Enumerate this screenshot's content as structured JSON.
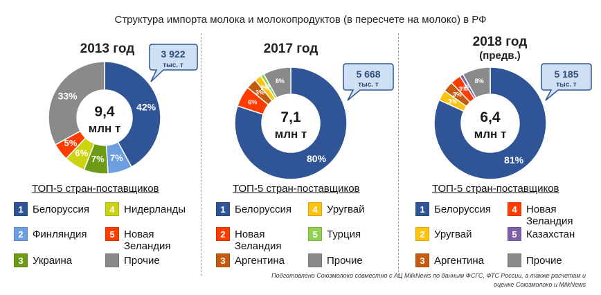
{
  "title": "Структура импорта молока и молокопродуктов (в пересчете на молоко) в РФ",
  "colors": {
    "belarus": "#2f5597",
    "finland": "#6d9ee0",
    "ukraine": "#6e9b16",
    "netherlands": "#ccd411",
    "new_zealand": "#ff3c00",
    "others": "#8a8a8a",
    "uruguay": "#ffc20e",
    "turkey": "#92d050",
    "argentina": "#c55a11",
    "kazakhstan": "#7d5fa6"
  },
  "chart_data": [
    {
      "type": "donut",
      "year": "2013 год",
      "year_sub": "",
      "center_value": "9,4",
      "center_unit": "млн т",
      "callout_value": "3 922",
      "callout_unit": "тыс. т",
      "slices": [
        {
          "name": "Белоруссия",
          "value": 42,
          "label": "42%",
          "color": "#2f5597"
        },
        {
          "name": "Финляндия",
          "value": 7,
          "label": "7%",
          "color": "#6d9ee0"
        },
        {
          "name": "Украина",
          "value": 7,
          "label": "7%",
          "color": "#6e9b16"
        },
        {
          "name": "Нидерланды",
          "value": 6,
          "label": "6%",
          "color": "#ccd411"
        },
        {
          "name": "Новая Зеландия",
          "value": 5,
          "label": "5%",
          "color": "#ff3c00"
        },
        {
          "name": "Прочие",
          "value": 33,
          "label": "33%",
          "color": "#8a8a8a"
        }
      ]
    },
    {
      "type": "donut",
      "year": "2017 год",
      "year_sub": "",
      "center_value": "7,1",
      "center_unit": "млн т",
      "callout_value": "5 668",
      "callout_unit": "тыс. т",
      "slices": [
        {
          "name": "Белоруссия",
          "value": 80,
          "label": "80%",
          "color": "#2f5597"
        },
        {
          "name": "Новая Зеландия",
          "value": 6,
          "label": "6%",
          "color": "#ff3c00"
        },
        {
          "name": "Аргентина",
          "value": 3,
          "label": "3%",
          "color": "#c55a11"
        },
        {
          "name": "Уругвай",
          "value": 2,
          "label": "2%",
          "color": "#ffc20e"
        },
        {
          "name": "Турция",
          "value": 1,
          "label": "1%",
          "color": "#92d050"
        },
        {
          "name": "Прочие",
          "value": 8,
          "label": "8%",
          "color": "#8a8a8a"
        }
      ]
    },
    {
      "type": "donut",
      "year": "2018 год",
      "year_sub": "(предв.)",
      "center_value": "6,4",
      "center_unit": "млн т",
      "callout_value": "5 185",
      "callout_unit": "тыс. т",
      "slices": [
        {
          "name": "Белоруссия",
          "value": 81,
          "label": "81%",
          "color": "#2f5597"
        },
        {
          "name": "Уругвай",
          "value": 3,
          "label": "3%",
          "color": "#ffc20e"
        },
        {
          "name": "Аргентина",
          "value": 3,
          "label": "3%",
          "color": "#c55a11"
        },
        {
          "name": "Новая Зеландия",
          "value": 3,
          "label": "3%",
          "color": "#ff3c00"
        },
        {
          "name": "Казахстан",
          "value": 1,
          "label": "1%",
          "color": "#7d5fa6"
        },
        {
          "name": "Прочие",
          "value": 8,
          "label": "8%",
          "color": "#8a8a8a"
        }
      ]
    }
  ],
  "legend_title": "ТОП-5 стран-поставщиков",
  "legends": [
    [
      {
        "num": "1",
        "label": "Белоруссия",
        "color": "#2f5597"
      },
      {
        "num": "4",
        "label": "Нидерланды",
        "color": "#ccd411"
      },
      {
        "num": "2",
        "label": "Финляндия",
        "color": "#6d9ee0"
      },
      {
        "num": "5",
        "label": "Новая\nЗеландия",
        "color": "#ff3c00"
      },
      {
        "num": "3",
        "label": "Украина",
        "color": "#6e9b16"
      },
      {
        "num": "",
        "label": "Прочие",
        "color": "#8a8a8a"
      }
    ],
    [
      {
        "num": "1",
        "label": "Белоруссия",
        "color": "#2f5597"
      },
      {
        "num": "4",
        "label": "Уругвай",
        "color": "#ffc20e"
      },
      {
        "num": "2",
        "label": "Новая\nЗеландия",
        "color": "#ff3c00"
      },
      {
        "num": "5",
        "label": "Турция",
        "color": "#92d050"
      },
      {
        "num": "3",
        "label": "Аргентина",
        "color": "#c55a11"
      },
      {
        "num": "",
        "label": "Прочие",
        "color": "#8a8a8a"
      }
    ],
    [
      {
        "num": "1",
        "label": "Белоруссия",
        "color": "#2f5597"
      },
      {
        "num": "4",
        "label": "Новая\nЗеландия",
        "color": "#ff3c00"
      },
      {
        "num": "2",
        "label": "Уругвай",
        "color": "#ffc20e"
      },
      {
        "num": "5",
        "label": "Казахстан",
        "color": "#7d5fa6"
      },
      {
        "num": "3",
        "label": "Аргентина",
        "color": "#c55a11"
      },
      {
        "num": "",
        "label": "Прочие",
        "color": "#8a8a8a"
      }
    ]
  ],
  "footnote": "Подготовлено Союзмолоко совместно с АЦ MilkNews по данным ФСГС, ФТС России, а также расчетам и оценке Союзмолоко и MilkNews"
}
